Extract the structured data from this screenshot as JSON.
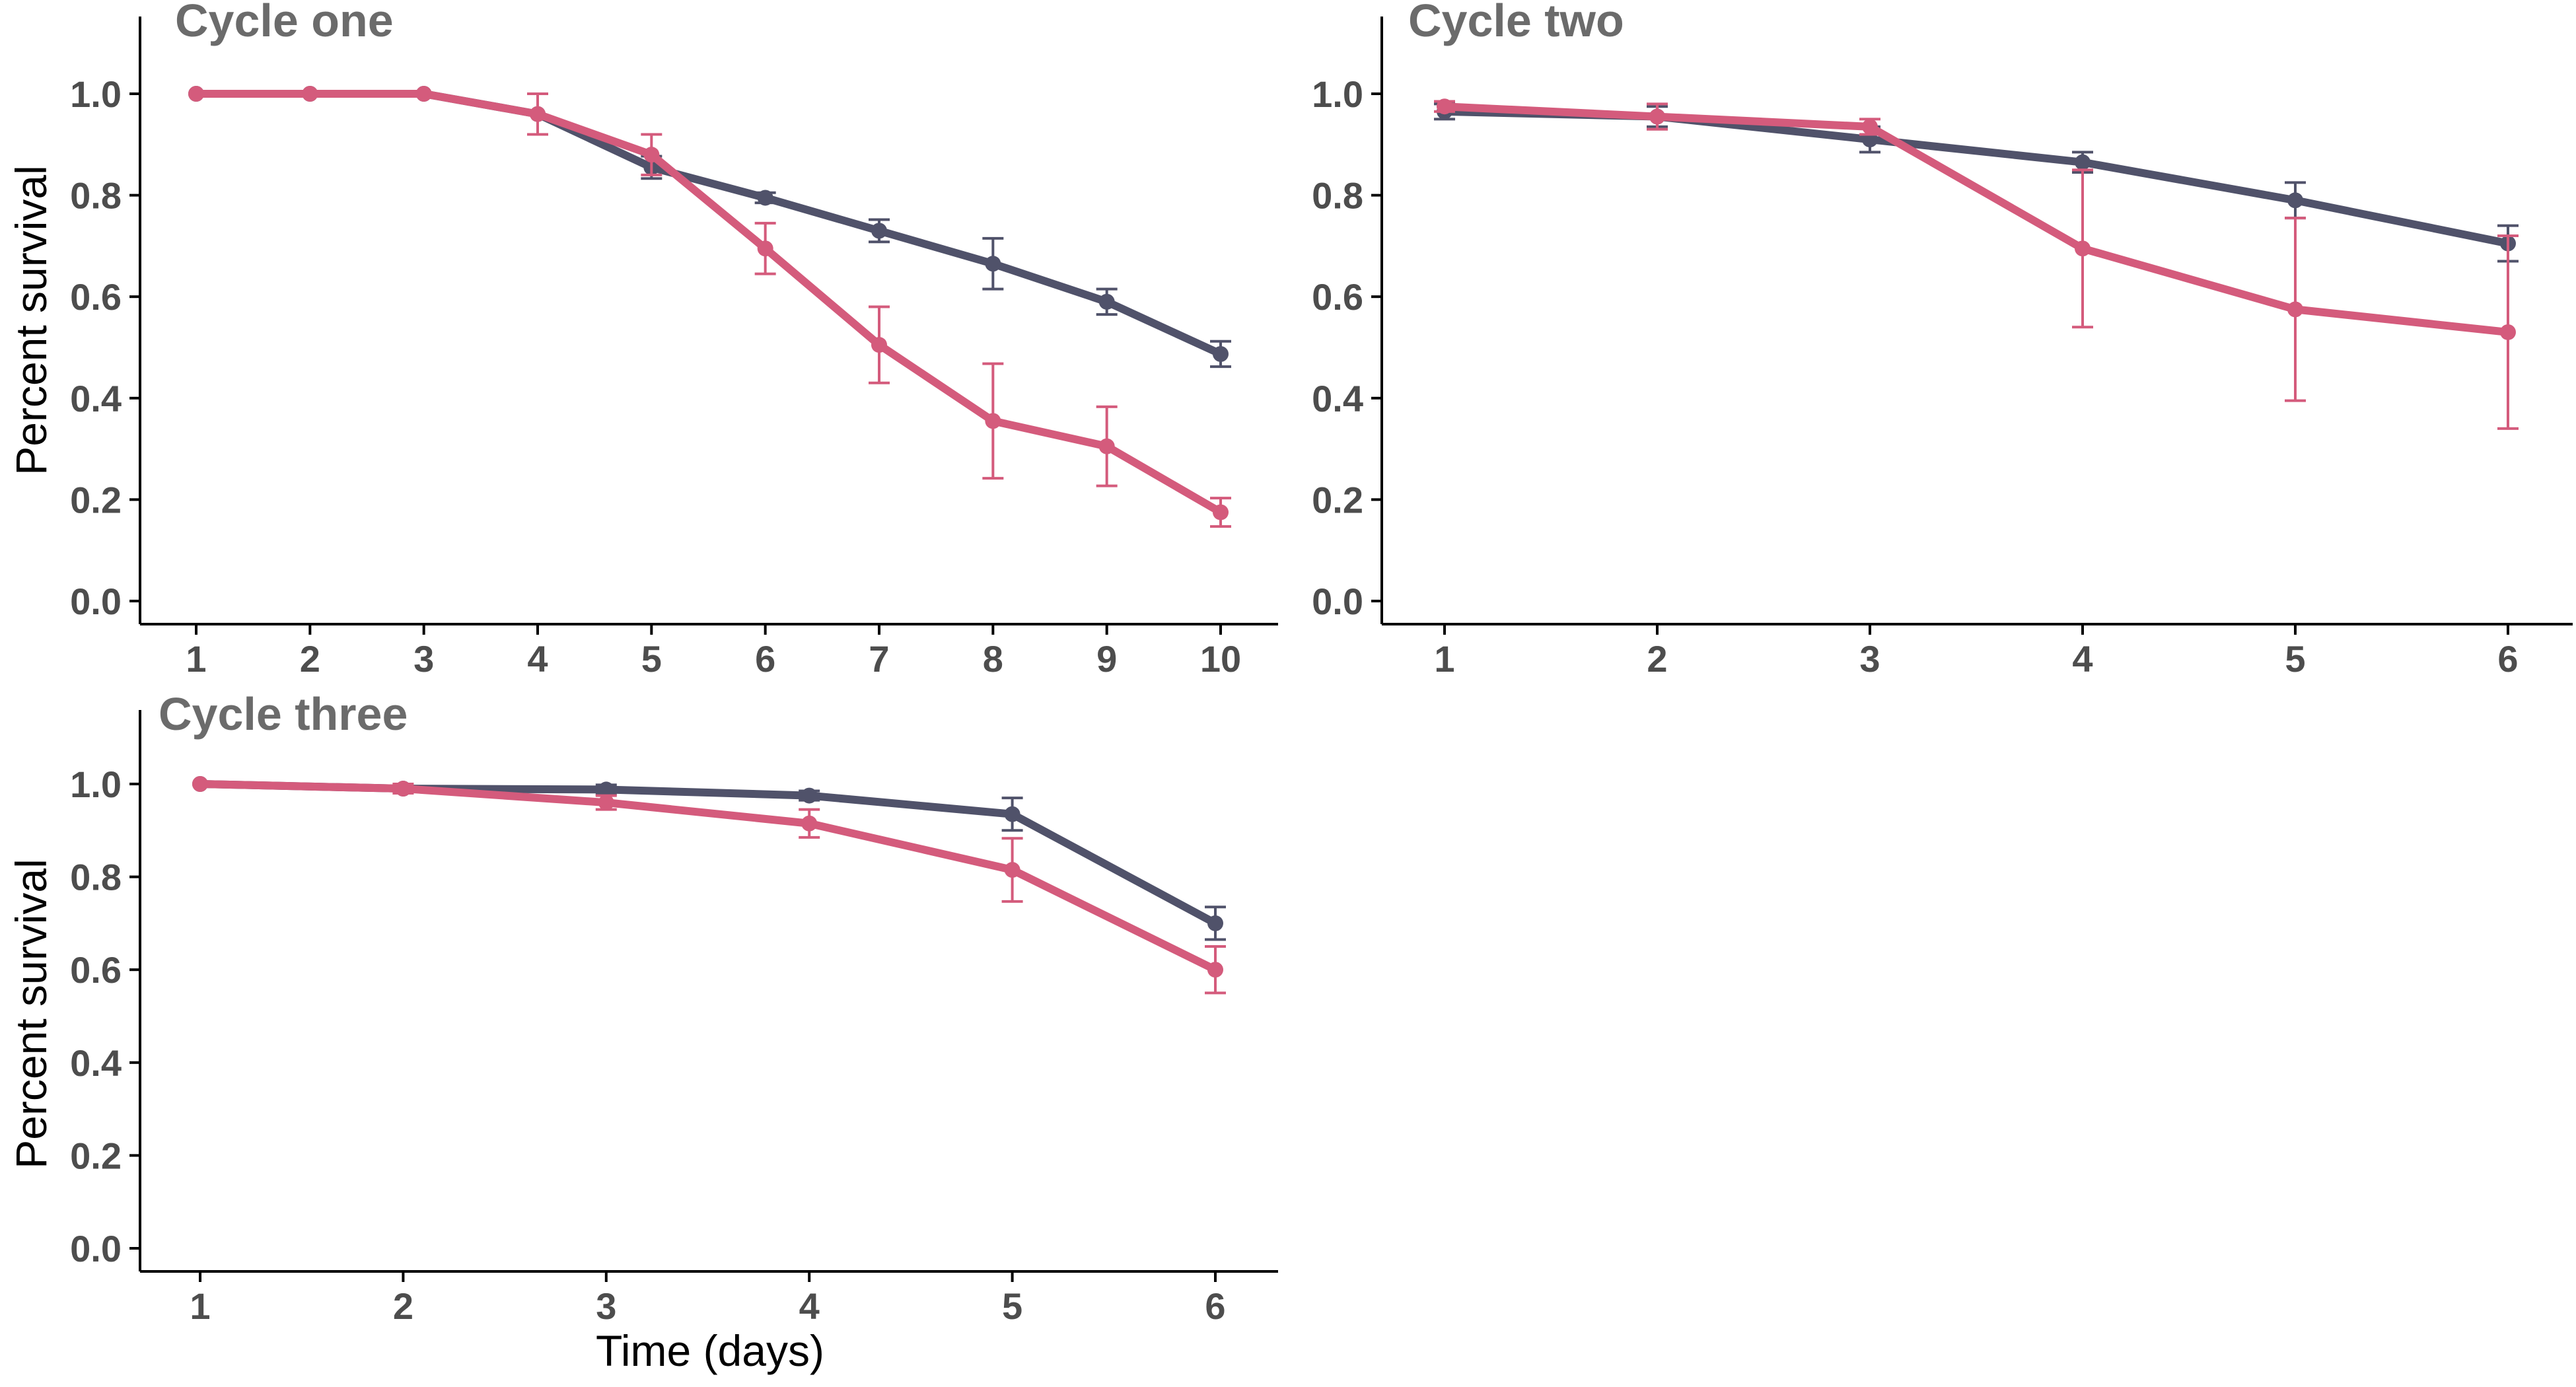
{
  "figure": {
    "x_axis_title": "Time (days)",
    "y_axis_title": "Percent survival"
  },
  "colors": {
    "series_a": "#50526a",
    "series_b": "#d45b7c"
  },
  "chart_data": [
    {
      "type": "line",
      "title": "Cycle one",
      "xlabel": "",
      "ylabel": "Percent survival",
      "ylim": [
        0,
        1.1
      ],
      "yticks": [
        "0.0",
        "0.2",
        "0.4",
        "0.6",
        "0.8",
        "1.0"
      ],
      "x": [
        1,
        2,
        3,
        4,
        5,
        6,
        7,
        8,
        9,
        10
      ],
      "grid": false,
      "series": [
        {
          "color": "#50526a",
          "values": [
            1.0,
            1.0,
            1.0,
            0.96,
            0.855,
            0.795,
            0.73,
            0.665,
            0.59,
            0.487
          ],
          "error": [
            0.0,
            0.0,
            0.0,
            0.0,
            0.022,
            0.01,
            0.022,
            0.05,
            0.025,
            0.025
          ]
        },
        {
          "color": "#d45b7c",
          "values": [
            1.0,
            1.0,
            1.0,
            0.96,
            0.88,
            0.695,
            0.505,
            0.355,
            0.305,
            0.175
          ],
          "error": [
            0.0,
            0.0,
            0.0,
            0.04,
            0.04,
            0.05,
            0.075,
            0.113,
            0.078,
            0.028
          ]
        }
      ]
    },
    {
      "type": "line",
      "title": "Cycle two",
      "xlabel": "",
      "ylabel": "",
      "ylim": [
        0,
        1.1
      ],
      "yticks": [
        "0.0",
        "0.2",
        "0.4",
        "0.6",
        "0.8",
        "1.0"
      ],
      "x": [
        1,
        2,
        3,
        4,
        5,
        6
      ],
      "grid": false,
      "series": [
        {
          "color": "#50526a",
          "values": [
            0.965,
            0.955,
            0.91,
            0.865,
            0.79,
            0.705
          ],
          "error": [
            0.015,
            0.02,
            0.025,
            0.02,
            0.035,
            0.035
          ]
        },
        {
          "color": "#d45b7c",
          "values": [
            0.975,
            0.955,
            0.935,
            0.695,
            0.575,
            0.53
          ],
          "error": [
            0.01,
            0.025,
            0.015,
            0.155,
            0.18,
            0.19
          ]
        }
      ]
    },
    {
      "type": "line",
      "title": "Cycle three",
      "xlabel": "Time (days)",
      "ylabel": "Percent survival",
      "ylim": [
        0,
        1.1
      ],
      "yticks": [
        "0.0",
        "0.2",
        "0.4",
        "0.6",
        "0.8",
        "1.0"
      ],
      "x": [
        1,
        2,
        3,
        4,
        5,
        6
      ],
      "grid": false,
      "series": [
        {
          "color": "#50526a",
          "values": [
            1.0,
            0.99,
            0.988,
            0.975,
            0.935,
            0.7
          ],
          "error": [
            0.0,
            0.0,
            0.01,
            0.01,
            0.035,
            0.035
          ]
        },
        {
          "color": "#d45b7c",
          "values": [
            1.0,
            0.99,
            0.96,
            0.915,
            0.815,
            0.6
          ],
          "error": [
            0.0,
            0.01,
            0.015,
            0.03,
            0.068,
            0.05
          ]
        }
      ]
    }
  ]
}
